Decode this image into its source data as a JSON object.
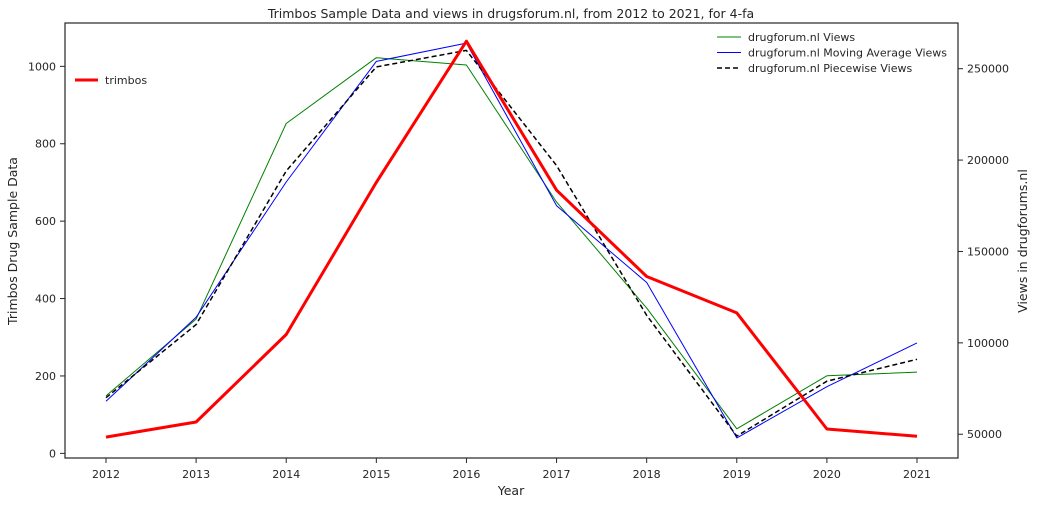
{
  "chart_data": {
    "type": "line",
    "title": "Trimbos Sample Data and views in drugsforum.nl, from 2012 to 2021, for 4-fa",
    "xlabel": "Year",
    "ylabel_left": "Trimbos Drug Sample Data",
    "ylabel_right": "Views in drugforums.nl",
    "x": [
      2012,
      2013,
      2014,
      2015,
      2016,
      2017,
      2018,
      2019,
      2020,
      2021
    ],
    "ylim_left": [
      -12,
      1112
    ],
    "ylim_right": [
      37000,
      275000
    ],
    "yticks_left": [
      0,
      200,
      400,
      600,
      800,
      1000
    ],
    "yticks_right": [
      50000,
      100000,
      150000,
      200000,
      250000
    ],
    "grid": false,
    "series": [
      {
        "name": "drugforum.nl Views",
        "axis": "right",
        "color": "#008000",
        "style": "solid",
        "values": [
          71000,
          113000,
          220000,
          256000,
          252000,
          177000,
          119000,
          53000,
          82000,
          84000
        ]
      },
      {
        "name": "drugforum.nl Moving Average Views",
        "axis": "right",
        "color": "#0000ff",
        "style": "solid",
        "values": [
          68000,
          114000,
          188000,
          254000,
          264000,
          175000,
          133000,
          48000,
          76000,
          100000
        ]
      },
      {
        "name": "drugforum.nl Piecewise Views",
        "axis": "right",
        "color": "#000000",
        "style": "dashed",
        "values": [
          70000,
          110000,
          194000,
          251000,
          260000,
          197000,
          115000,
          49000,
          79000,
          91000
        ]
      },
      {
        "name": "trimbos",
        "axis": "left",
        "color": "#ff0000",
        "style": "thick",
        "values": [
          42,
          81,
          307,
          700,
          1065,
          680,
          457,
          363,
          63,
          44
        ]
      }
    ],
    "legend_right": {
      "position": "top-right",
      "items": [
        "drugforum.nl Views",
        "drugforum.nl Moving Average Views",
        "drugforum.nl Piecewise Views"
      ]
    },
    "legend_left": {
      "position": "upper-left",
      "items": [
        "trimbos"
      ]
    }
  }
}
